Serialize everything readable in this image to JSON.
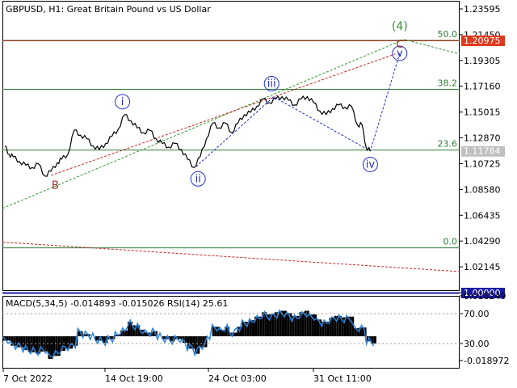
{
  "header": {
    "symbol_label": "GBPUSD, H1:  Great Britain Pound vs US Dollar",
    "indicator_label": "MACD(5,34,5) -0.014893 -0.015026 RSI(14) 25.61"
  },
  "chart_data": [
    {
      "type": "line",
      "title": "GBPUSD, H1:  Great Britain Pound vs US Dollar",
      "price_ticks": [
        "1.23595",
        "1.21450",
        "1.19305",
        "1.17160",
        "1.15015",
        "1.12870",
        "1.10725",
        "1.08580",
        "1.06435",
        "1.04290",
        "1.02145",
        "1.00000"
      ],
      "ylim": [
        0.997,
        1.241
      ],
      "x_tick_labels": [
        "7 Oct 2022",
        "14 Oct 19:00",
        "24 Oct 03:00",
        "31 Oct 11:00"
      ],
      "highlighted_prices": [
        {
          "label": "1.20975",
          "value": 1.20975,
          "color": "#e03a1e"
        },
        {
          "label": "1.11784",
          "value": 1.11784,
          "color": "#c0c0c0"
        },
        {
          "label": "1.00000",
          "value": 1.0,
          "color": "#1a1aa6"
        }
      ],
      "fibonacci_levels": [
        {
          "label": "50.0",
          "value": 1.2096
        },
        {
          "label": "38.2",
          "value": 1.1691
        },
        {
          "label": "23.6",
          "value": 1.1186
        },
        {
          "label": "0.0",
          "value": 1.0372
        }
      ],
      "price_series": [
        {
          "t": 0,
          "v": 1.122
        },
        {
          "t": 2,
          "v": 1.115
        },
        {
          "t": 4,
          "v": 1.113
        },
        {
          "t": 7,
          "v": 1.109
        },
        {
          "t": 10,
          "v": 1.106
        },
        {
          "t": 13,
          "v": 1.104
        },
        {
          "t": 16,
          "v": 1.107
        },
        {
          "t": 19,
          "v": 1.097
        },
        {
          "t": 22,
          "v": 1.101
        },
        {
          "t": 25,
          "v": 1.108
        },
        {
          "t": 27,
          "v": 1.111
        },
        {
          "t": 30,
          "v": 1.115
        },
        {
          "t": 33,
          "v": 1.135
        },
        {
          "t": 36,
          "v": 1.131
        },
        {
          "t": 39,
          "v": 1.128
        },
        {
          "t": 42,
          "v": 1.122
        },
        {
          "t": 45,
          "v": 1.119
        },
        {
          "t": 48,
          "v": 1.124
        },
        {
          "t": 51,
          "v": 1.13
        },
        {
          "t": 54,
          "v": 1.136
        },
        {
          "t": 57,
          "v": 1.148
        },
        {
          "t": 60,
          "v": 1.143
        },
        {
          "t": 63,
          "v": 1.137
        },
        {
          "t": 66,
          "v": 1.133
        },
        {
          "t": 69,
          "v": 1.135
        },
        {
          "t": 72,
          "v": 1.128
        },
        {
          "t": 75,
          "v": 1.124
        },
        {
          "t": 78,
          "v": 1.121
        },
        {
          "t": 81,
          "v": 1.124
        },
        {
          "t": 84,
          "v": 1.119
        },
        {
          "t": 87,
          "v": 1.111
        },
        {
          "t": 90,
          "v": 1.104
        },
        {
          "t": 93,
          "v": 1.113
        },
        {
          "t": 96,
          "v": 1.128
        },
        {
          "t": 99,
          "v": 1.141
        },
        {
          "t": 102,
          "v": 1.137
        },
        {
          "t": 105,
          "v": 1.141
        },
        {
          "t": 108,
          "v": 1.133
        },
        {
          "t": 111,
          "v": 1.141
        },
        {
          "t": 114,
          "v": 1.148
        },
        {
          "t": 117,
          "v": 1.15
        },
        {
          "t": 120,
          "v": 1.155
        },
        {
          "t": 123,
          "v": 1.161
        },
        {
          "t": 126,
          "v": 1.158
        },
        {
          "t": 129,
          "v": 1.161
        },
        {
          "t": 132,
          "v": 1.163
        },
        {
          "t": 135,
          "v": 1.16
        },
        {
          "t": 138,
          "v": 1.156
        },
        {
          "t": 141,
          "v": 1.161
        },
        {
          "t": 144,
          "v": 1.163
        },
        {
          "t": 147,
          "v": 1.158
        },
        {
          "t": 150,
          "v": 1.151
        },
        {
          "t": 153,
          "v": 1.148
        },
        {
          "t": 156,
          "v": 1.153
        },
        {
          "t": 159,
          "v": 1.156
        },
        {
          "t": 162,
          "v": 1.154
        },
        {
          "t": 165,
          "v": 1.155
        },
        {
          "t": 168,
          "v": 1.139
        },
        {
          "t": 170,
          "v": 1.14
        },
        {
          "t": 172,
          "v": 1.121
        },
        {
          "t": 174,
          "v": 1.118
        }
      ],
      "macd_ticks": [
        "0.018249",
        "70.00",
        "30.00",
        "-0.018972"
      ]
    }
  ],
  "wave_labels": {
    "B": "B",
    "i": "i",
    "ii": "ii",
    "iii": "iii",
    "iv": "iv",
    "v": "v",
    "C": "C",
    "wave4": "(4)"
  },
  "colors": {
    "price_line": "#000000",
    "fib_line": "#2e7d32",
    "trend_green": "#2e9a2e",
    "trend_red": "#d02020",
    "wave_blue": "#1f2fd0",
    "macd_line": "#2a84e0",
    "macd_hist": "#000000"
  }
}
